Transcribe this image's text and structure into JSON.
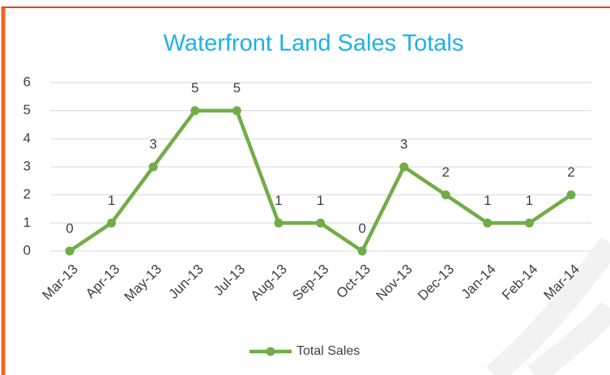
{
  "chart_data": {
    "type": "line",
    "title": "Waterfront Land Sales Totals",
    "categories": [
      "Mar-13",
      "Apr-13",
      "May-13",
      "Jun-13",
      "Jul-13",
      "Aug-13",
      "Sep-13",
      "Oct-13",
      "Nov-13",
      "Dec-13",
      "Jan-14",
      "Feb-14",
      "Mar-14"
    ],
    "series": [
      {
        "name": "Total Sales",
        "color": "#70ad47",
        "values": [
          0,
          1,
          3,
          5,
          5,
          1,
          1,
          0,
          3,
          2,
          1,
          1,
          2
        ]
      }
    ],
    "ylim": [
      0,
      6
    ],
    "yticks": [
      0,
      1,
      2,
      3,
      4,
      5,
      6
    ],
    "grid": true,
    "legend": "bottom"
  }
}
